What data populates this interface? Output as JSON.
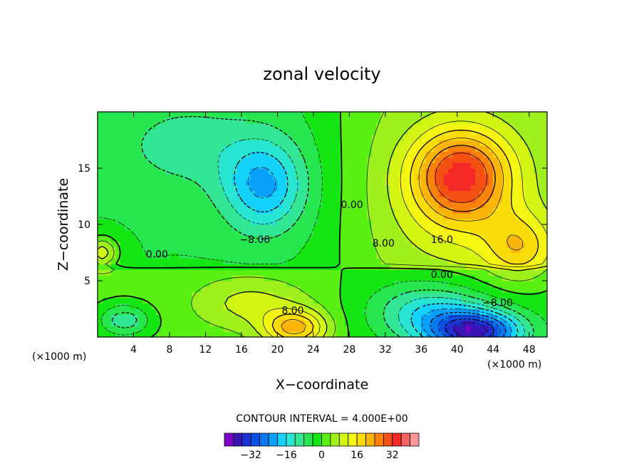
{
  "chart_data": {
    "type": "heatmap",
    "title": "zonal velocity",
    "xlabel": "X−coordinate",
    "ylabel": "Z−coordinate",
    "x_unit": "(×1000 m)",
    "y_unit": "(×1000 m)",
    "xlim": [
      0,
      50
    ],
    "ylim": [
      0,
      20
    ],
    "x_ticks": [
      4,
      8,
      12,
      16,
      20,
      24,
      28,
      32,
      36,
      40,
      44,
      48
    ],
    "x_tick_labels": [
      "4",
      "8",
      "12",
      "16",
      "20",
      "24",
      "28",
      "32",
      "36",
      "40",
      "44",
      "48"
    ],
    "y_ticks": [
      5,
      10,
      15
    ],
    "y_tick_labels": [
      "5",
      "10",
      "15"
    ],
    "grid": false,
    "contour_interval": 4,
    "contour_interval_text": "CONTOUR INTERVAL = 4.000E+00",
    "contour_labels": [
      {
        "text": "−8.00",
        "x": 17.5,
        "y": 8.6
      },
      {
        "text": "0.00",
        "x": 28.3,
        "y": 11.7
      },
      {
        "text": "0.00",
        "x": 6.6,
        "y": 7.3
      },
      {
        "text": "8.00",
        "x": 31.8,
        "y": 8.3
      },
      {
        "text": "16.0",
        "x": 38.3,
        "y": 8.6
      },
      {
        "text": "0.00",
        "x": 38.3,
        "y": 5.5
      },
      {
        "text": "−8.00",
        "x": 44.5,
        "y": 3.0
      },
      {
        "text": "8.00",
        "x": 21.7,
        "y": 2.3
      }
    ],
    "colorbar": {
      "levels": [
        -40,
        -36,
        -32,
        -28,
        -24,
        -20,
        -16,
        -12,
        -8,
        -4,
        0,
        4,
        8,
        12,
        16,
        20,
        24,
        28,
        32,
        36,
        40
      ],
      "colors": [
        "#7f00c8",
        "#3a14b4",
        "#1e32d2",
        "#0a50e6",
        "#0a78f0",
        "#08a0f8",
        "#14d2fa",
        "#28e6d2",
        "#32e696",
        "#28e650",
        "#14e614",
        "#5af014",
        "#a0f01e",
        "#d2f514",
        "#f5f514",
        "#fadc0a",
        "#fab40a",
        "#fa820a",
        "#f55014",
        "#f52828",
        "#f56464",
        "#fa9696"
      ],
      "tick_labels": [
        "−32",
        "−16",
        "0",
        "16",
        "32"
      ],
      "tick_values": [
        -32,
        -16,
        0,
        16,
        32
      ]
    },
    "field_features": [
      {
        "kind": "background",
        "value": 0
      },
      {
        "kind": "min",
        "x": 18.5,
        "y": 13.5,
        "value": -17,
        "sx": 4.5,
        "sy": 4.0
      },
      {
        "kind": "min",
        "x": 10,
        "y": 17,
        "value": -6,
        "sx": 8,
        "sy": 4
      },
      {
        "kind": "min",
        "x": 42,
        "y": 0.5,
        "value": -34,
        "sx": 5,
        "sy": 1.8
      },
      {
        "kind": "min",
        "x": 37,
        "y": 2.2,
        "value": -14,
        "sx": 6,
        "sy": 2.5
      },
      {
        "kind": "max",
        "x": 40.5,
        "y": 14.5,
        "value": 24,
        "sx": 5.5,
        "sy": 4.0
      },
      {
        "kind": "max",
        "x": 40,
        "y": 12,
        "value": 8,
        "sx": 7,
        "sy": 6
      },
      {
        "kind": "max",
        "x": 22,
        "y": 0.8,
        "value": 20,
        "sx": 3.5,
        "sy": 1.6
      },
      {
        "kind": "max",
        "x": 17,
        "y": 3,
        "value": 8,
        "sx": 6,
        "sy": 2.2
      },
      {
        "kind": "max",
        "x": 0.5,
        "y": 7.5,
        "value": 14,
        "sx": 1.8,
        "sy": 1.4
      },
      {
        "kind": "max",
        "x": 47,
        "y": 8,
        "value": 14,
        "sx": 4,
        "sy": 3
      },
      {
        "kind": "min",
        "x": 3,
        "y": 1.5,
        "value": -12,
        "sx": 3,
        "sy": 1.5
      }
    ]
  }
}
